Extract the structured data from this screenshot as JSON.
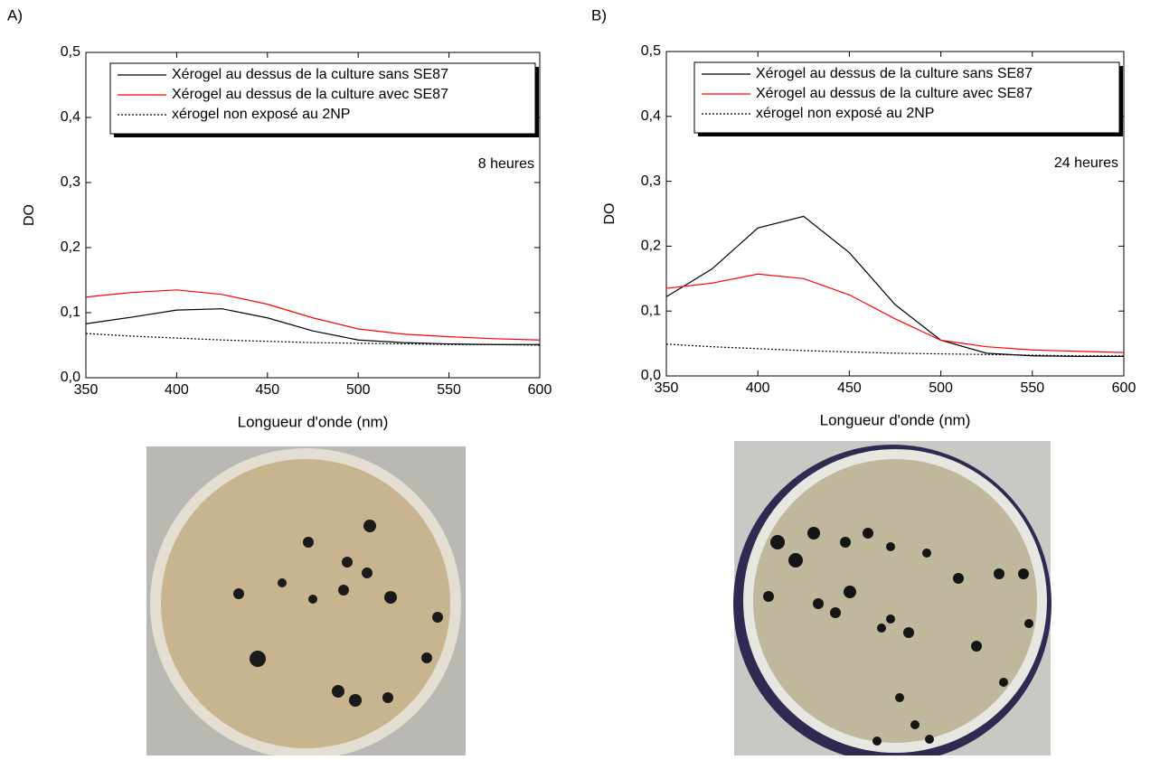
{
  "chart_data": [
    {
      "type": "line",
      "panel": "A)",
      "annotation": "8 heures",
      "x_label": "Longueur d'onde (nm)",
      "y_label": "DO",
      "x": [
        350,
        375,
        400,
        425,
        450,
        475,
        500,
        525,
        550,
        575,
        600
      ],
      "series": [
        {
          "name": "Xérogel au dessus de la culture sans SE87",
          "color": "#000000",
          "style": "solid",
          "values": [
            0.083,
            0.093,
            0.104,
            0.106,
            0.092,
            0.072,
            0.058,
            0.054,
            0.052,
            0.051,
            0.051
          ]
        },
        {
          "name": "Xérogel au dessus de la culture avec SE87",
          "color": "#ff0000",
          "style": "solid",
          "values": [
            0.124,
            0.131,
            0.135,
            0.128,
            0.113,
            0.092,
            0.075,
            0.067,
            0.063,
            0.06,
            0.058
          ]
        },
        {
          "name": "xérogel non exposé au 2NP",
          "color": "#000000",
          "style": "dotted",
          "values": [
            0.068,
            0.064,
            0.061,
            0.058,
            0.056,
            0.054,
            0.053,
            0.052,
            0.051,
            0.051,
            0.05
          ]
        }
      ],
      "xlim": [
        350,
        600
      ],
      "xticks": [
        350,
        400,
        450,
        500,
        550,
        600
      ],
      "ylim": [
        0,
        0.5
      ],
      "yticks": [
        {
          "value": 0,
          "label": "0,0"
        },
        {
          "value": 0.1,
          "label": "0,1"
        },
        {
          "value": 0.2,
          "label": "0,2"
        },
        {
          "value": 0.3,
          "label": "0,3"
        },
        {
          "value": 0.4,
          "label": "0,4"
        },
        {
          "value": 0.5,
          "label": "0,5"
        }
      ],
      "legend": "top-right"
    },
    {
      "type": "line",
      "panel": "B)",
      "annotation": "24 heures",
      "x_label": "Longueur d'onde (nm)",
      "y_label": "DO",
      "x": [
        350,
        375,
        400,
        425,
        450,
        475,
        500,
        525,
        550,
        575,
        600
      ],
      "series": [
        {
          "name": "Xérogel au dessus de la culture sans SE87",
          "color": "#000000",
          "style": "solid",
          "values": [
            0.122,
            0.165,
            0.228,
            0.246,
            0.19,
            0.11,
            0.055,
            0.035,
            0.031,
            0.03,
            0.03
          ]
        },
        {
          "name": "Xérogel au dessus de la culture avec SE87",
          "color": "#ff0000",
          "style": "solid",
          "values": [
            0.135,
            0.143,
            0.157,
            0.15,
            0.125,
            0.088,
            0.055,
            0.045,
            0.04,
            0.038,
            0.036
          ]
        },
        {
          "name": "xérogel non exposé au 2NP",
          "color": "#000000",
          "style": "dotted",
          "values": [
            0.049,
            0.045,
            0.042,
            0.039,
            0.037,
            0.035,
            0.034,
            0.033,
            0.032,
            0.031,
            0.031
          ]
        }
      ],
      "xlim": [
        350,
        600
      ],
      "xticks": [
        350,
        400,
        450,
        500,
        550,
        600
      ],
      "ylim": [
        0,
        0.5
      ],
      "yticks": [
        {
          "value": 0,
          "label": "0,0"
        },
        {
          "value": 0.1,
          "label": "0,1"
        },
        {
          "value": 0.2,
          "label": "0,2"
        },
        {
          "value": 0.3,
          "label": "0,3"
        },
        {
          "value": 0.4,
          "label": "0,4"
        },
        {
          "value": 0.5,
          "label": "0,5"
        }
      ],
      "legend": "top-right"
    }
  ]
}
